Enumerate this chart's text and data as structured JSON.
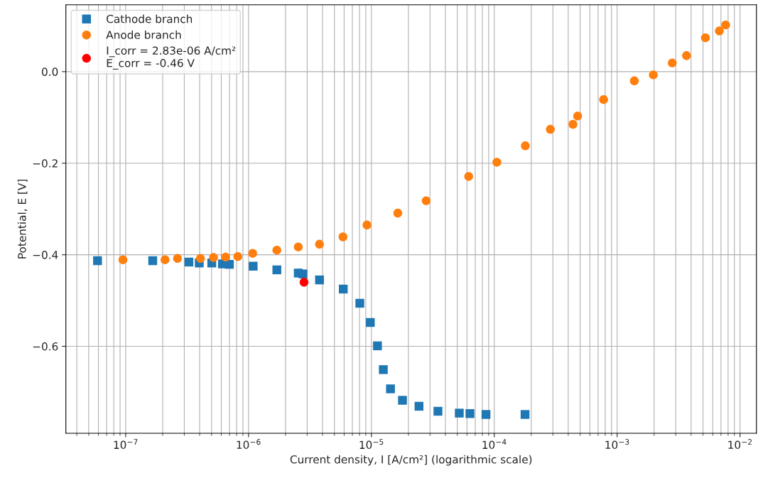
{
  "chart_data": {
    "type": "scatter",
    "xlabel": "Current density, I [A/cm²] (logarithmic scale)",
    "ylabel": "Potential, E [V]",
    "log": "x",
    "xlim": [
      3.26e-08,
      0.0136
    ],
    "xticks": [
      {
        "value": 1e-07,
        "label": "10$^{−7}$"
      },
      {
        "value": 1e-06,
        "label": "10$^{−6}$"
      },
      {
        "value": 1e-05,
        "label": "10$^{−5}$"
      },
      {
        "value": 0.0001,
        "label": "10$^{−4}$"
      },
      {
        "value": 0.001,
        "label": "10$^{−3}$"
      },
      {
        "value": 0.01,
        "label": "10$^{−2}$"
      }
    ],
    "ylim": [
      -0.79,
      0.146
    ],
    "yticks": [
      {
        "value": -0.6,
        "label": "−0.6"
      },
      {
        "value": -0.4,
        "label": "−0.4"
      },
      {
        "value": -0.2,
        "label": "−0.2"
      },
      {
        "value": 0.0,
        "label": "0.0"
      }
    ],
    "grid": true,
    "legend": "top left",
    "series": [
      {
        "name": "Cathode branch",
        "color": "#1f77b4",
        "marker": "square",
        "x": [
          5.9e-08,
          1.66e-07,
          3.27e-07,
          3.97e-07,
          5.02e-07,
          6.13e-07,
          6.98e-07,
          1.09e-06,
          1.7e-06,
          2.54e-06,
          2.77e-06,
          3.78e-06,
          5.9e-06,
          8.05e-06,
          9.8e-06,
          1.12e-05,
          1.25e-05,
          1.43e-05,
          1.79e-05,
          2.44e-05,
          3.48e-05,
          5.19e-05,
          6.34e-05,
          8.56e-05,
          0.000178
        ],
        "values": [
          -0.413,
          -0.413,
          -0.416,
          -0.418,
          -0.418,
          -0.42,
          -0.421,
          -0.425,
          -0.433,
          -0.44,
          -0.442,
          -0.455,
          -0.475,
          -0.506,
          -0.548,
          -0.599,
          -0.651,
          -0.693,
          -0.718,
          -0.731,
          -0.742,
          -0.746,
          -0.747,
          -0.749,
          -0.749
        ]
      },
      {
        "name": "Anode branch",
        "color": "#ff7f0e",
        "marker": "circle",
        "x": [
          9.5e-08,
          2.09e-07,
          2.64e-07,
          4.06e-07,
          5.19e-07,
          6.5e-07,
          8.18e-07,
          1.08e-06,
          1.7e-06,
          2.54e-06,
          3.78e-06,
          5.87e-06,
          9.2e-06,
          1.64e-05,
          2.79e-05,
          6.19e-05,
          0.000105,
          0.000179,
          0.000286,
          0.000437,
          0.000477,
          0.000776,
          0.00138,
          0.00197,
          0.00281,
          0.00367,
          0.00523,
          0.00679,
          0.00764
        ],
        "values": [
          -0.411,
          -0.411,
          -0.408,
          -0.408,
          -0.406,
          -0.405,
          -0.404,
          -0.397,
          -0.39,
          -0.383,
          -0.377,
          -0.361,
          -0.335,
          -0.309,
          -0.282,
          -0.229,
          -0.198,
          -0.162,
          -0.126,
          -0.115,
          -0.097,
          -0.061,
          -0.02,
          -0.007,
          0.019,
          0.035,
          0.074,
          0.089,
          0.102
        ]
      },
      {
        "name": "I_corr = 2.83e-06 A/cm²\nE_corr = -0.46 V",
        "color": "#ff0000",
        "marker": "circle",
        "x": [
          2.83e-06
        ],
        "values": [
          -0.46
        ]
      }
    ]
  }
}
